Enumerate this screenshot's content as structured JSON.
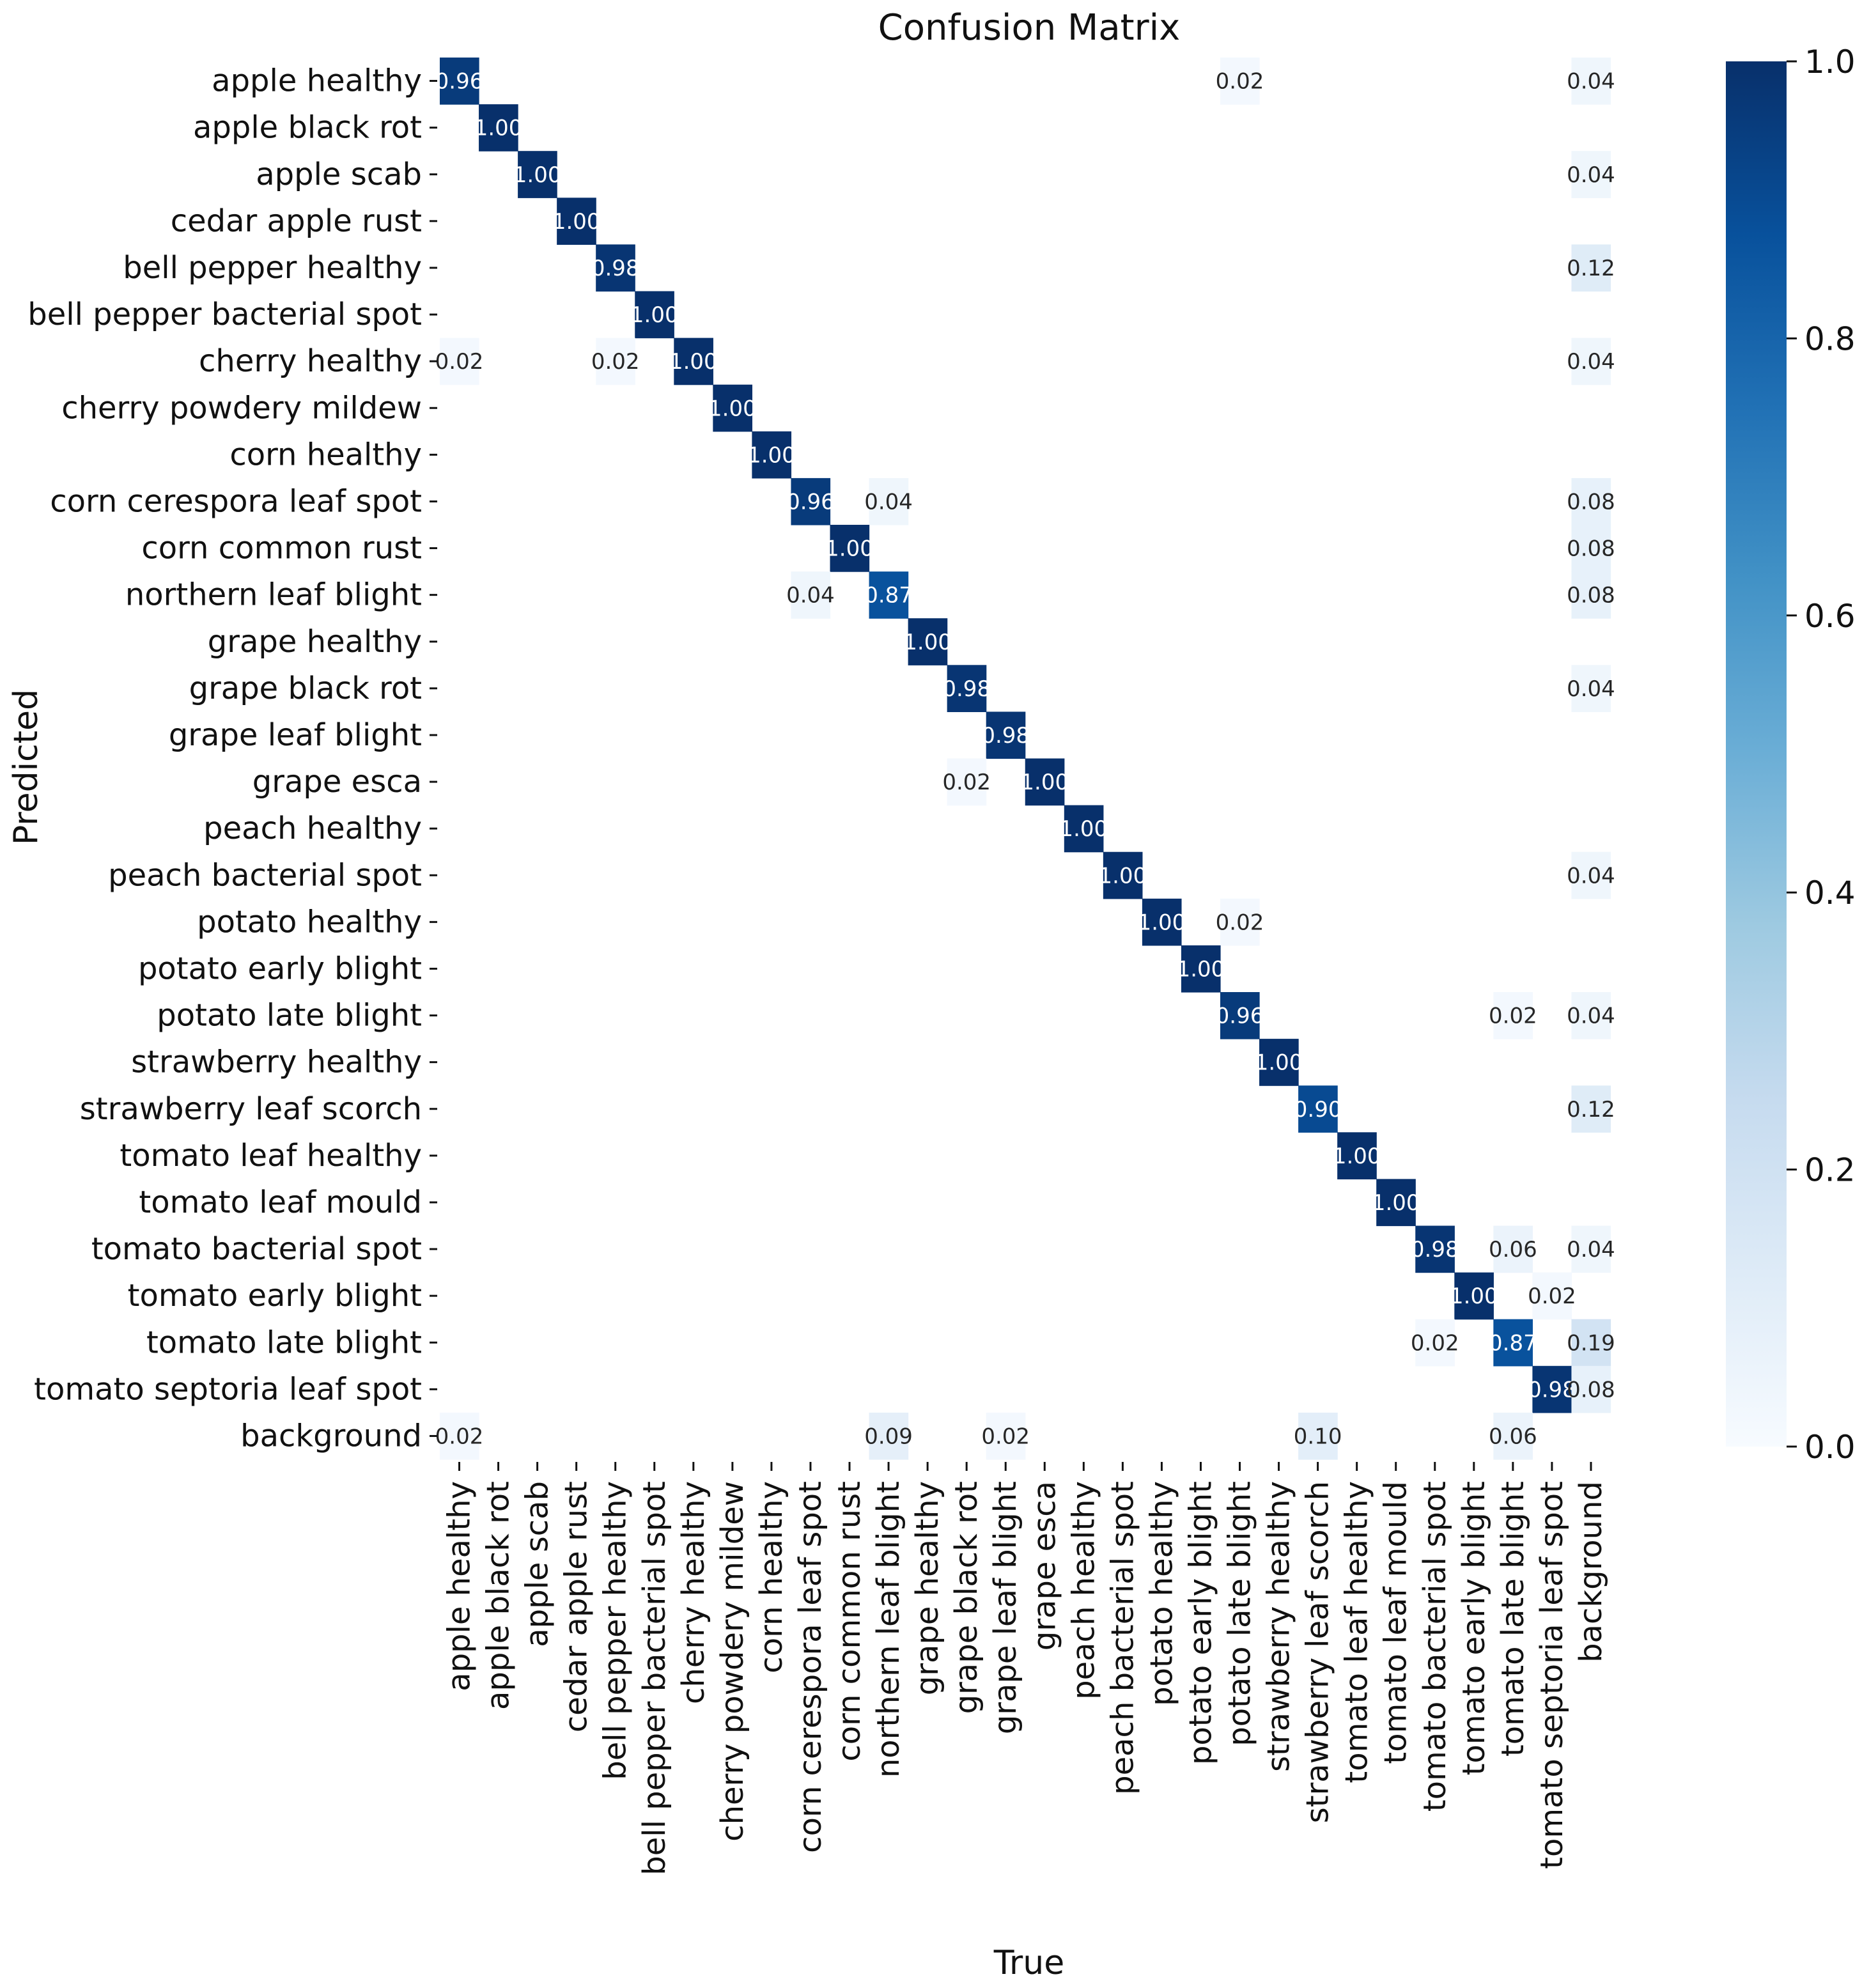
{
  "chart_data": {
    "type": "heatmap",
    "title": "Confusion Matrix",
    "xlabel": "True",
    "ylabel": "Predicted",
    "labels": [
      "apple healthy",
      "apple black rot",
      "apple scab",
      "cedar apple rust",
      "bell pepper healthy",
      "bell pepper bacterial spot",
      "cherry healthy",
      "cherry powdery mildew",
      "corn healthy",
      "corn cerespora leaf spot",
      "corn common rust",
      "northern leaf blight",
      "grape healthy",
      "grape black rot",
      "grape leaf blight",
      "grape esca",
      "peach healthy",
      "peach bacterial spot",
      "potato healthy",
      "potato early blight",
      "potato late blight",
      "strawberry healthy",
      "strawberry leaf scorch",
      "tomato leaf healthy",
      "tomato leaf mould",
      "tomato bacterial spot",
      "tomato early blight",
      "tomato late blight",
      "tomato septoria leaf spot",
      "background"
    ],
    "cells": [
      {
        "row": 0,
        "col": 0,
        "value": 0.96
      },
      {
        "row": 0,
        "col": 20,
        "value": 0.02
      },
      {
        "row": 0,
        "col": 29,
        "value": 0.04
      },
      {
        "row": 1,
        "col": 1,
        "value": 1.0
      },
      {
        "row": 2,
        "col": 2,
        "value": 1.0
      },
      {
        "row": 2,
        "col": 29,
        "value": 0.04
      },
      {
        "row": 3,
        "col": 3,
        "value": 1.0
      },
      {
        "row": 4,
        "col": 4,
        "value": 0.98
      },
      {
        "row": 4,
        "col": 29,
        "value": 0.12
      },
      {
        "row": 5,
        "col": 5,
        "value": 1.0
      },
      {
        "row": 6,
        "col": 0,
        "value": 0.02
      },
      {
        "row": 6,
        "col": 4,
        "value": 0.02
      },
      {
        "row": 6,
        "col": 6,
        "value": 1.0
      },
      {
        "row": 6,
        "col": 29,
        "value": 0.04
      },
      {
        "row": 7,
        "col": 7,
        "value": 1.0
      },
      {
        "row": 8,
        "col": 8,
        "value": 1.0
      },
      {
        "row": 9,
        "col": 9,
        "value": 0.96
      },
      {
        "row": 9,
        "col": 11,
        "value": 0.04
      },
      {
        "row": 9,
        "col": 29,
        "value": 0.08
      },
      {
        "row": 10,
        "col": 10,
        "value": 1.0
      },
      {
        "row": 10,
        "col": 29,
        "value": 0.08
      },
      {
        "row": 11,
        "col": 9,
        "value": 0.04
      },
      {
        "row": 11,
        "col": 11,
        "value": 0.87
      },
      {
        "row": 11,
        "col": 29,
        "value": 0.08
      },
      {
        "row": 12,
        "col": 12,
        "value": 1.0
      },
      {
        "row": 13,
        "col": 13,
        "value": 0.98
      },
      {
        "row": 13,
        "col": 29,
        "value": 0.04
      },
      {
        "row": 14,
        "col": 14,
        "value": 0.98
      },
      {
        "row": 15,
        "col": 13,
        "value": 0.02
      },
      {
        "row": 15,
        "col": 15,
        "value": 1.0
      },
      {
        "row": 16,
        "col": 16,
        "value": 1.0
      },
      {
        "row": 17,
        "col": 17,
        "value": 1.0
      },
      {
        "row": 17,
        "col": 29,
        "value": 0.04
      },
      {
        "row": 18,
        "col": 18,
        "value": 1.0
      },
      {
        "row": 18,
        "col": 20,
        "value": 0.02
      },
      {
        "row": 19,
        "col": 19,
        "value": 1.0
      },
      {
        "row": 20,
        "col": 20,
        "value": 0.96
      },
      {
        "row": 20,
        "col": 27,
        "value": 0.02
      },
      {
        "row": 20,
        "col": 29,
        "value": 0.04
      },
      {
        "row": 21,
        "col": 21,
        "value": 1.0
      },
      {
        "row": 22,
        "col": 22,
        "value": 0.9
      },
      {
        "row": 22,
        "col": 29,
        "value": 0.12
      },
      {
        "row": 23,
        "col": 23,
        "value": 1.0
      },
      {
        "row": 24,
        "col": 24,
        "value": 1.0
      },
      {
        "row": 25,
        "col": 25,
        "value": 0.98
      },
      {
        "row": 25,
        "col": 27,
        "value": 0.06
      },
      {
        "row": 25,
        "col": 29,
        "value": 0.04
      },
      {
        "row": 26,
        "col": 26,
        "value": 1.0
      },
      {
        "row": 26,
        "col": 28,
        "value": 0.02
      },
      {
        "row": 27,
        "col": 25,
        "value": 0.02
      },
      {
        "row": 27,
        "col": 27,
        "value": 0.87
      },
      {
        "row": 27,
        "col": 29,
        "value": 0.19
      },
      {
        "row": 28,
        "col": 28,
        "value": 0.98
      },
      {
        "row": 28,
        "col": 29,
        "value": 0.08
      },
      {
        "row": 29,
        "col": 0,
        "value": 0.02
      },
      {
        "row": 29,
        "col": 11,
        "value": 0.09
      },
      {
        "row": 29,
        "col": 14,
        "value": 0.02
      },
      {
        "row": 29,
        "col": 22,
        "value": 0.1
      },
      {
        "row": 29,
        "col": 27,
        "value": 0.06
      }
    ],
    "value_range": [
      0,
      1
    ],
    "colorbar": {
      "ticks": [
        0.0,
        0.2,
        0.4,
        0.6,
        0.8,
        1.0
      ],
      "tick_labels": [
        "0.0",
        "0.2",
        "0.4",
        "0.6",
        "0.8",
        "1.0"
      ],
      "colormap": "Blues"
    },
    "cell_value_format": "2 decimals",
    "grid": false,
    "legend": "colorbar-right"
  },
  "colors": {
    "blues_scale": [
      "#f7fbff",
      "#deebf7",
      "#c6dbef",
      "#9ecae1",
      "#6baed6",
      "#4292c6",
      "#2171b5",
      "#08519c",
      "#08306b"
    ],
    "text_dark": "#262626",
    "text_light": "#ffffff"
  }
}
